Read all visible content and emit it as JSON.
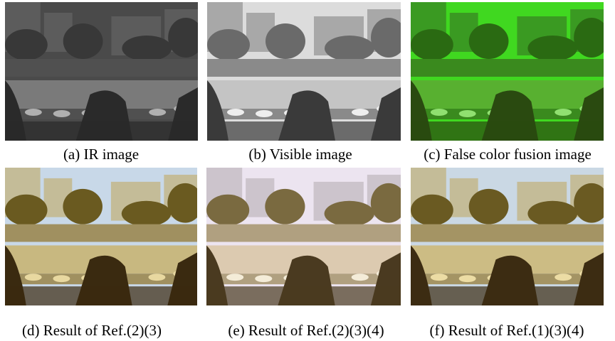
{
  "figure": {
    "panels": [
      {
        "caption": "(a) IR image"
      },
      {
        "caption": "(b) Visible image"
      },
      {
        "caption": "(c) False color fusion image"
      },
      {
        "caption": "(d) Result of Ref.(2)(3)"
      },
      {
        "caption": "(e) Result of Ref.(2)(3)(4)"
      },
      {
        "caption": "(f) Result of Ref.(1)(3)(4)"
      }
    ]
  }
}
